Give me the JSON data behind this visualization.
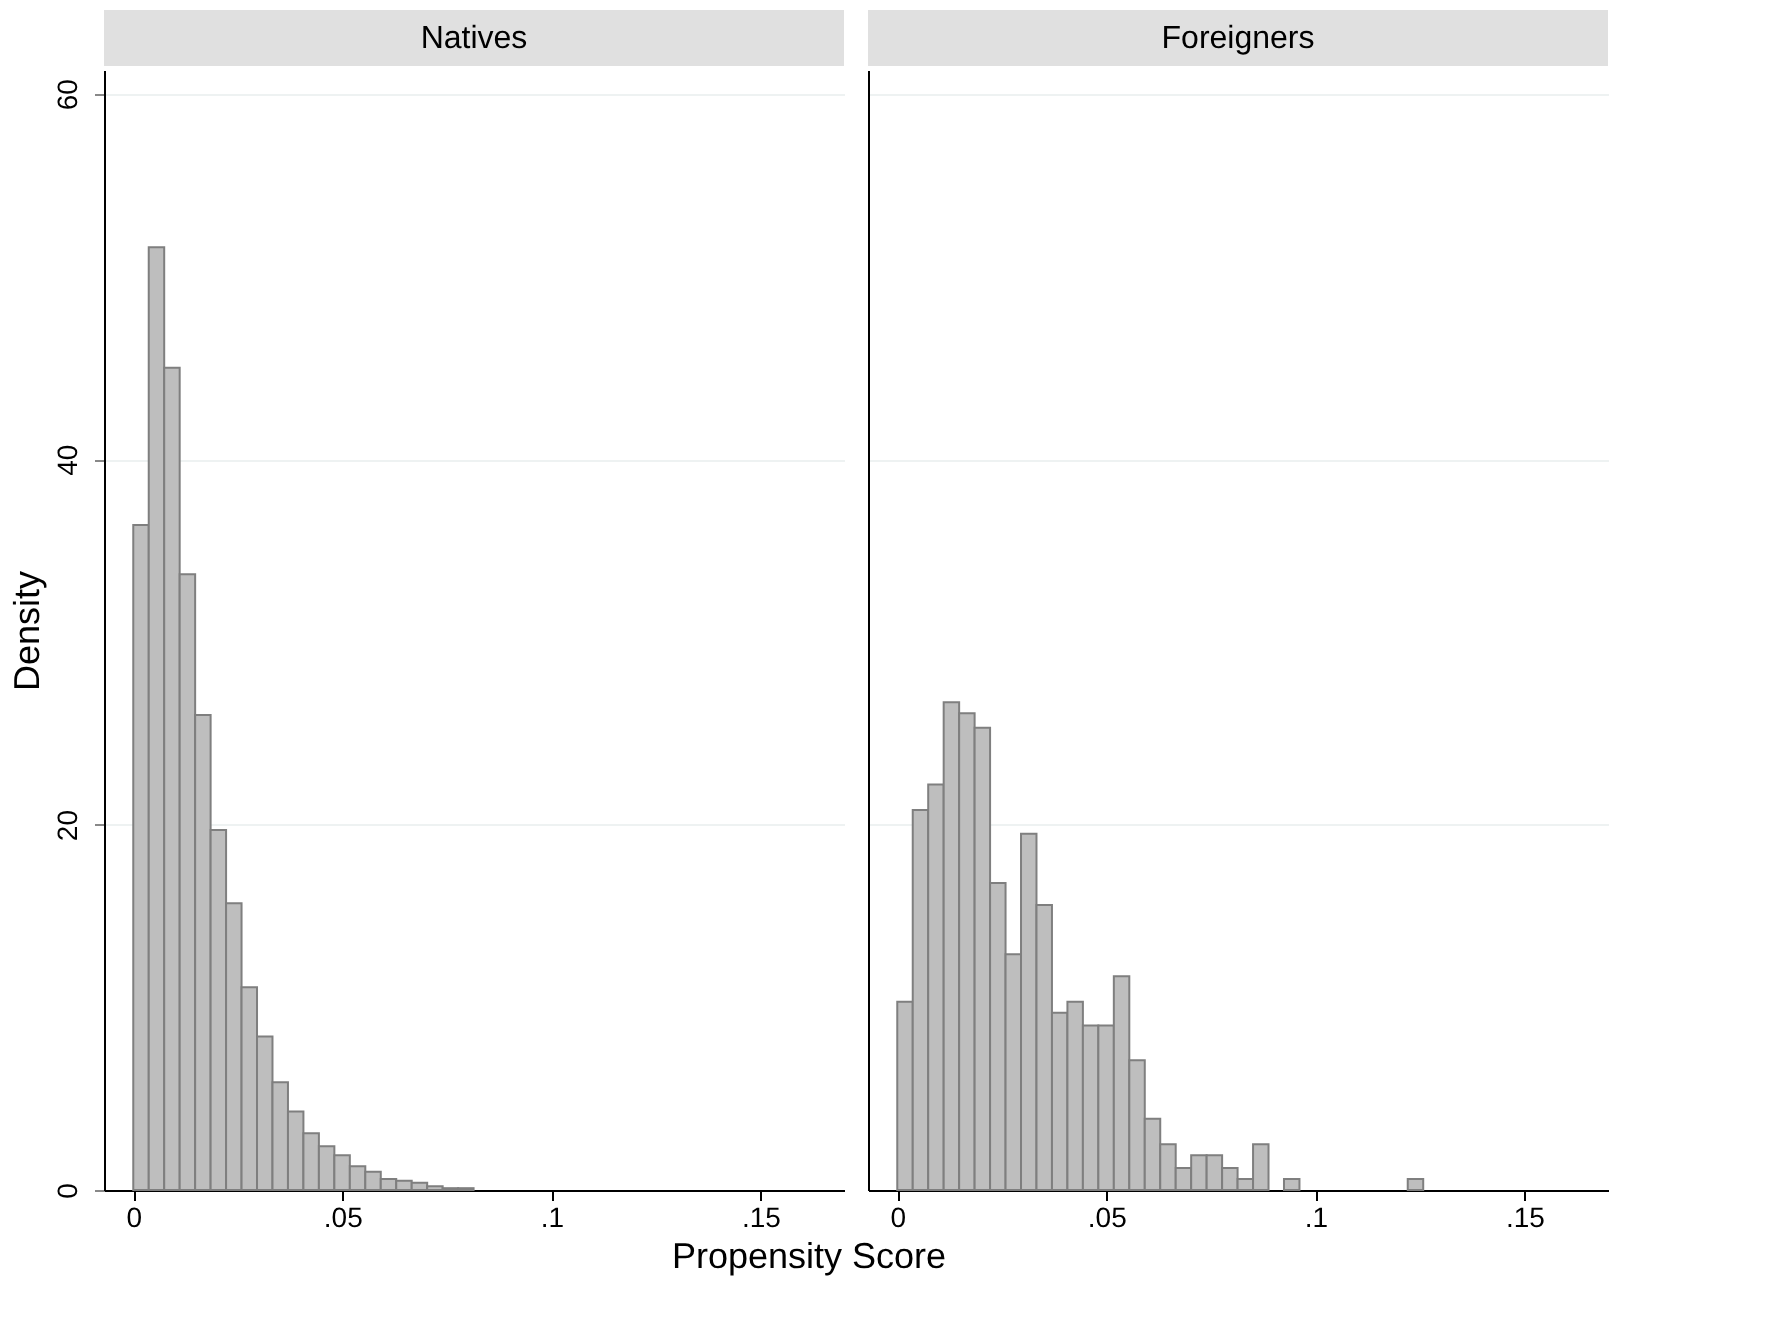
{
  "chart_data": [
    {
      "type": "histogram",
      "title": "Natives",
      "ylabel": "Density",
      "xlabel": "Propensity Score",
      "color": "#bebebe",
      "bins": [
        0,
        0.0037,
        0.0074,
        0.0111,
        0.0148,
        0.0185,
        0.0222,
        0.0259,
        0.0296,
        0.0333,
        0.037,
        0.0407,
        0.0444,
        0.0481,
        0.0518,
        0.0555,
        0.0592,
        0.0629,
        0.0666,
        0.0703,
        0.074,
        0.0777,
        0.0814
      ],
      "values": [
        36.4,
        51.6,
        45.0,
        33.7,
        26.0,
        19.7,
        15.7,
        11.1,
        8.4,
        5.9,
        4.3,
        3.1,
        2.4,
        1.9,
        1.3,
        1.0,
        0.6,
        0.5,
        0.4,
        0.2,
        0.1,
        0.1
      ],
      "xlim": [
        -0.007,
        0.17
      ],
      "ylim": [
        0,
        61.3
      ],
      "xticks": [
        0,
        {
          "value": 0.05,
          "label": ".05"
        },
        {
          "value": 0.1,
          "label": ".1"
        },
        {
          "value": 0.15,
          "label": ".15"
        }
      ],
      "yticks": [
        0,
        20,
        40,
        60
      ],
      "grid": "y"
    },
    {
      "type": "histogram",
      "title": "Foreigners",
      "color": "#bebebe",
      "bins": [
        0,
        0.0037,
        0.0074,
        0.0111,
        0.0148,
        0.0185,
        0.0222,
        0.0259,
        0.0296,
        0.0333,
        0.037,
        0.0407,
        0.0444,
        0.0481,
        0.0518,
        0.0555,
        0.0592,
        0.0629,
        0.0666,
        0.0703,
        0.074,
        0.0777,
        0.0814,
        0.0851,
        0.0888,
        0.0925,
        0.0962,
        0.0999,
        0.1036,
        0.1073,
        0.111,
        0.1147,
        0.1184,
        0.1221,
        0.1258
      ],
      "values": [
        10.3,
        20.8,
        22.2,
        26.7,
        26.1,
        25.3,
        16.8,
        12.9,
        19.5,
        15.6,
        9.7,
        10.3,
        9.0,
        9.0,
        11.7,
        7.1,
        3.9,
        2.5,
        1.2,
        1.9,
        1.9,
        1.2,
        0.6,
        2.5,
        null,
        0.6,
        null,
        null,
        null,
        null,
        null,
        null,
        null,
        0.6
      ],
      "xlim": [
        -0.007,
        0.17
      ],
      "ylim": [
        0,
        61.3
      ],
      "xticks": [
        0,
        {
          "value": 0.05,
          "label": ".05"
        },
        {
          "value": 0.1,
          "label": ".1"
        },
        {
          "value": 0.15,
          "label": ".15"
        }
      ],
      "yticks": [
        0,
        20,
        40,
        60
      ],
      "grid": "y",
      "tick_labels": "x"
    }
  ]
}
